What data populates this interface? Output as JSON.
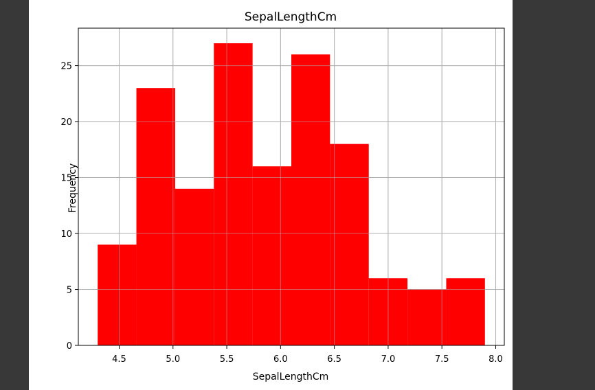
{
  "colors": {
    "page_background": "#383838",
    "figure_background": "#ffffff",
    "bar_fill": "#ff0000",
    "grid": "#b0b0b0",
    "axes": "#000000"
  },
  "chart_data": {
    "type": "bar",
    "title": "SepalLengthCm",
    "xlabel": "SepalLengthCm",
    "ylabel": "Frequency",
    "grid": true,
    "xlim": [
      4.12,
      8.08
    ],
    "ylim": [
      0,
      28.35
    ],
    "bins": [
      {
        "x0": 4.3,
        "x1": 4.66,
        "count": 9
      },
      {
        "x0": 4.66,
        "x1": 5.02,
        "count": 23
      },
      {
        "x0": 5.02,
        "x1": 5.38,
        "count": 14
      },
      {
        "x0": 5.38,
        "x1": 5.74,
        "count": 27
      },
      {
        "x0": 5.74,
        "x1": 6.1,
        "count": 16
      },
      {
        "x0": 6.1,
        "x1": 6.46,
        "count": 26
      },
      {
        "x0": 6.46,
        "x1": 6.82,
        "count": 18
      },
      {
        "x0": 6.82,
        "x1": 7.18,
        "count": 6
      },
      {
        "x0": 7.18,
        "x1": 7.54,
        "count": 5
      },
      {
        "x0": 7.54,
        "x1": 7.9,
        "count": 6
      }
    ],
    "x_ticks": [
      {
        "value": 4.5,
        "label": "4.5"
      },
      {
        "value": 5.0,
        "label": "5.0"
      },
      {
        "value": 5.5,
        "label": "5.5"
      },
      {
        "value": 6.0,
        "label": "6.0"
      },
      {
        "value": 6.5,
        "label": "6.5"
      },
      {
        "value": 7.0,
        "label": "7.0"
      },
      {
        "value": 7.5,
        "label": "7.5"
      },
      {
        "value": 8.0,
        "label": "8.0"
      }
    ],
    "y_ticks": [
      {
        "value": 0,
        "label": "0"
      },
      {
        "value": 5,
        "label": "5"
      },
      {
        "value": 10,
        "label": "10"
      },
      {
        "value": 15,
        "label": "15"
      },
      {
        "value": 20,
        "label": "20"
      },
      {
        "value": 25,
        "label": "25"
      }
    ]
  }
}
